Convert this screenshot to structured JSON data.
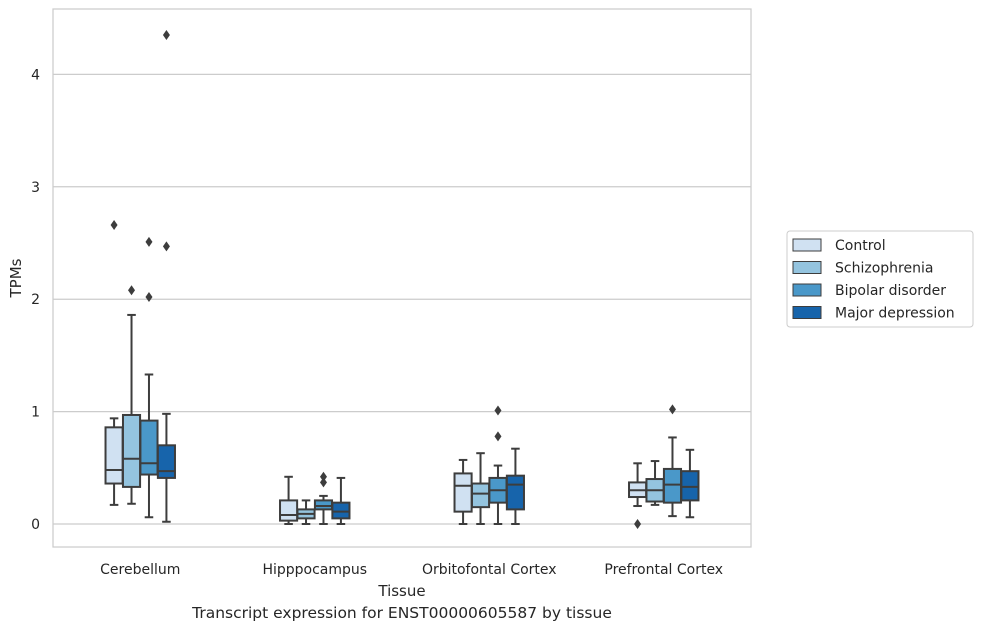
{
  "chart_data": {
    "type": "boxplot",
    "xlabel": "Tissue",
    "ylabel": "TPMs",
    "caption": "Transcript expression for ENST00000605587 by tissue",
    "ylim": [
      -0.21,
      4.58
    ],
    "yticks": [
      0,
      1,
      2,
      3,
      4
    ],
    "grid": true,
    "legend_position": "right",
    "categories": [
      "Cerebellum",
      "Hipppocampus",
      "Orbitofontal Cortex",
      "Prefrontal Cortex"
    ],
    "series": [
      {
        "name": "Control",
        "color": "#d0e1f2",
        "boxes": [
          {
            "whislo": 0.17,
            "q1": 0.36,
            "med": 0.48,
            "q3": 0.86,
            "whishi": 0.94,
            "fliers": [
              2.66
            ]
          },
          {
            "whislo": 0.0,
            "q1": 0.03,
            "med": 0.08,
            "q3": 0.21,
            "whishi": 0.42,
            "fliers": []
          },
          {
            "whislo": 0.0,
            "q1": 0.11,
            "med": 0.34,
            "q3": 0.45,
            "whishi": 0.57,
            "fliers": []
          },
          {
            "whislo": 0.16,
            "q1": 0.24,
            "med": 0.3,
            "q3": 0.37,
            "whishi": 0.54,
            "fliers": [
              0.0
            ]
          }
        ]
      },
      {
        "name": "Schizophrenia",
        "color": "#94c4df",
        "boxes": [
          {
            "whislo": 0.18,
            "q1": 0.33,
            "med": 0.58,
            "q3": 0.97,
            "whishi": 1.86,
            "fliers": [
              2.08
            ]
          },
          {
            "whislo": 0.0,
            "q1": 0.05,
            "med": 0.09,
            "q3": 0.13,
            "whishi": 0.21,
            "fliers": []
          },
          {
            "whislo": 0.0,
            "q1": 0.15,
            "med": 0.27,
            "q3": 0.36,
            "whishi": 0.63,
            "fliers": []
          },
          {
            "whislo": 0.17,
            "q1": 0.2,
            "med": 0.3,
            "q3": 0.4,
            "whishi": 0.56,
            "fliers": []
          }
        ]
      },
      {
        "name": "Bipolar disorder",
        "color": "#4a98c9",
        "boxes": [
          {
            "whislo": 0.06,
            "q1": 0.44,
            "med": 0.54,
            "q3": 0.92,
            "whishi": 1.33,
            "fliers": [
              2.51,
              2.02
            ]
          },
          {
            "whislo": 0.0,
            "q1": 0.13,
            "med": 0.16,
            "q3": 0.21,
            "whishi": 0.25,
            "fliers": [
              0.42,
              0.37
            ]
          },
          {
            "whislo": 0.0,
            "q1": 0.19,
            "med": 0.3,
            "q3": 0.41,
            "whishi": 0.52,
            "fliers": [
              1.01,
              0.78
            ]
          },
          {
            "whislo": 0.07,
            "q1": 0.19,
            "med": 0.35,
            "q3": 0.49,
            "whishi": 0.77,
            "fliers": [
              1.02
            ]
          }
        ]
      },
      {
        "name": "Major depression",
        "color": "#1764ab",
        "boxes": [
          {
            "whislo": 0.02,
            "q1": 0.41,
            "med": 0.47,
            "q3": 0.7,
            "whishi": 0.98,
            "fliers": [
              2.47,
              4.35
            ]
          },
          {
            "whislo": 0.0,
            "q1": 0.05,
            "med": 0.11,
            "q3": 0.19,
            "whishi": 0.41,
            "fliers": []
          },
          {
            "whislo": 0.0,
            "q1": 0.13,
            "med": 0.35,
            "q3": 0.43,
            "whishi": 0.67,
            "fliers": []
          },
          {
            "whislo": 0.06,
            "q1": 0.21,
            "med": 0.33,
            "q3": 0.47,
            "whishi": 0.66,
            "fliers": []
          }
        ]
      }
    ]
  }
}
